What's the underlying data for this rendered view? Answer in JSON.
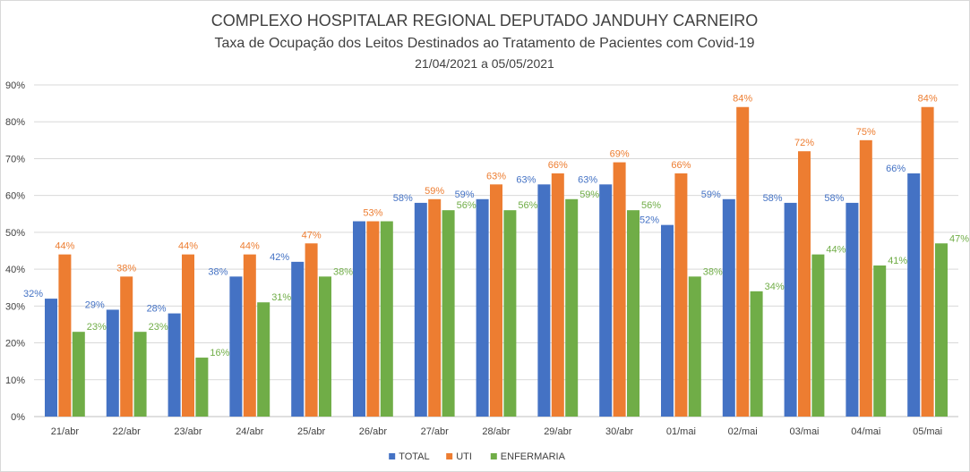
{
  "chart_data": {
    "type": "bar",
    "title": "COMPLEXO HOSPITALAR REGIONAL DEPUTADO JANDUHY CARNEIRO",
    "subtitle": "Taxa de Ocupação dos Leitos Destinados ao Tratamento de Pacientes com Covid-19",
    "date_range": "21/04/2021 a 05/05/2021",
    "categories": [
      "21/abr",
      "22/abr",
      "23/abr",
      "24/abr",
      "25/abr",
      "26/abr",
      "27/abr",
      "28/abr",
      "29/abr",
      "30/abr",
      "01/mai",
      "02/mai",
      "03/mai",
      "04/mai",
      "05/mai"
    ],
    "series": [
      {
        "name": "TOTAL",
        "color": "#4472C4",
        "values": [
          32,
          29,
          28,
          38,
          42,
          53,
          58,
          59,
          63,
          63,
          52,
          59,
          58,
          58,
          66
        ],
        "labels": [
          "32%",
          "29%",
          "28%",
          "38%",
          "42%",
          "",
          "58%",
          "59%",
          "63%",
          "63%",
          "52%",
          "59%",
          "58%",
          "58%",
          "66%"
        ]
      },
      {
        "name": "UTI",
        "color": "#ED7D31",
        "values": [
          44,
          38,
          44,
          44,
          47,
          53,
          59,
          63,
          66,
          69,
          66,
          84,
          72,
          75,
          84
        ],
        "labels": [
          "44%",
          "38%",
          "44%",
          "44%",
          "47%",
          "53%",
          "59%",
          "63%",
          "66%",
          "69%",
          "66%",
          "84%",
          "72%",
          "75%",
          "84%"
        ]
      },
      {
        "name": "ENFERMARIA",
        "color": "#70AD47",
        "values": [
          23,
          23,
          16,
          31,
          38,
          53,
          56,
          56,
          59,
          56,
          38,
          34,
          44,
          41,
          47
        ],
        "labels": [
          "23%",
          "23%",
          "16%",
          "31%",
          "38%",
          "",
          "56%",
          "56%",
          "59%",
          "56%",
          "38%",
          "34%",
          "44%",
          "41%",
          "47%"
        ]
      }
    ],
    "y_ticks": [
      "0%",
      "10%",
      "20%",
      "30%",
      "40%",
      "50%",
      "60%",
      "70%",
      "80%",
      "90%"
    ],
    "ylim": [
      0,
      90
    ],
    "grid": true,
    "legend_position": "bottom"
  }
}
